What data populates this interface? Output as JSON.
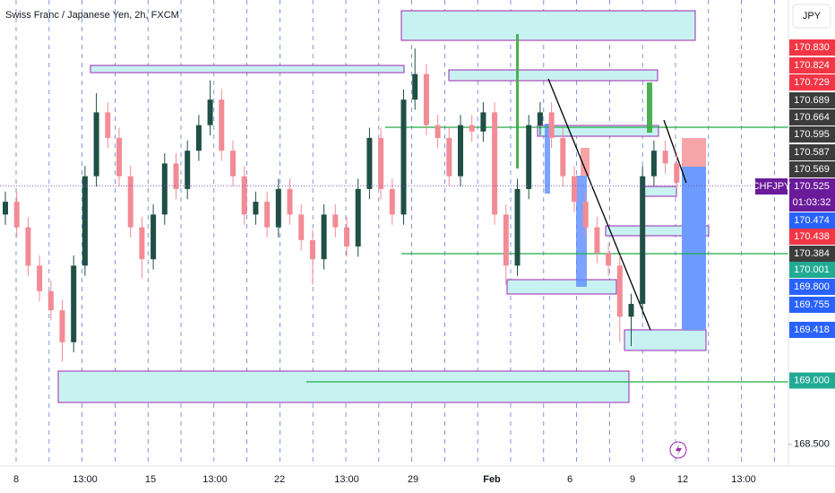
{
  "chart_data": {
    "type": "candlestick",
    "title": "Swiss Franc / Japanese Yen, 2h, FXCM",
    "currency": "JPY",
    "symbol": "CHFJPY",
    "countdown": "01:03:32",
    "up_color": "#1f4f45",
    "down_color": "#f28b95",
    "ylim": [
      168.33,
      171.98
    ],
    "yticks": [
      {
        "value": 168.5,
        "label": "168.500"
      }
    ],
    "current_price": {
      "value": 170.525,
      "label": "170.525"
    },
    "x_tick_labels": [
      "8",
      "13:00",
      "15",
      "13:00",
      "22",
      "13:00",
      "29",
      "Feb",
      "6",
      "9",
      "12",
      "13:00"
    ],
    "price_tags": [
      {
        "value": 170.83,
        "label": "170.830",
        "color": "#f23645"
      },
      {
        "value": 170.824,
        "label": "170.824",
        "color": "#f23645"
      },
      {
        "value": 170.729,
        "label": "170.729",
        "color": "#f23645"
      },
      {
        "value": 170.689,
        "label": "170.689",
        "color": "#3c3c3c"
      },
      {
        "value": 170.664,
        "label": "170.664",
        "color": "#3c3c3c"
      },
      {
        "value": 170.595,
        "label": "170.595",
        "color": "#3c3c3c"
      },
      {
        "value": 170.587,
        "label": "170.587",
        "color": "#3c3c3c"
      },
      {
        "value": 170.569,
        "label": "170.569",
        "color": "#3c3c3c"
      },
      {
        "value": 170.474,
        "label": "170.474",
        "color": "#2962ff"
      },
      {
        "value": 170.438,
        "label": "170.438",
        "color": "#f23645"
      },
      {
        "value": 170.384,
        "label": "170.384",
        "color": "#3c3c3c"
      },
      {
        "value": 170.001,
        "label": "170.001",
        "color": "#22ab94"
      },
      {
        "value": 169.8,
        "label": "169.800",
        "color": "#2962ff"
      },
      {
        "value": 169.755,
        "label": "169.755",
        "color": "#2962ff"
      },
      {
        "value": 169.418,
        "label": "169.418",
        "color": "#2962ff"
      },
      {
        "value": 169.0,
        "label": "169.000",
        "color": "#22ab94"
      }
    ],
    "open": [
      170.3,
      170.4,
      170.2,
      169.9,
      169.7,
      169.55,
      169.3,
      169.9,
      170.6,
      171.1,
      170.9,
      170.6,
      170.2,
      169.95,
      170.3,
      170.7,
      170.5,
      170.8,
      171.0,
      171.2,
      170.8,
      170.6,
      170.3,
      170.4,
      170.2,
      170.5,
      170.3,
      170.1,
      169.95,
      170.3,
      170.2,
      170.05,
      170.5,
      170.9,
      170.5,
      170.3,
      171.2,
      171.4,
      171.0,
      170.9,
      170.6,
      171.0,
      170.95,
      171.1,
      170.3,
      169.9,
      170.5,
      171.0,
      171.1,
      170.9,
      170.6,
      170.4,
      170.2,
      170.0,
      169.9,
      169.5,
      169.6,
      170.6,
      170.8,
      170.7
    ],
    "high": [
      170.48,
      170.48,
      170.28,
      169.98,
      169.78,
      169.63,
      169.98,
      170.68,
      171.25,
      171.18,
      170.98,
      170.68,
      170.28,
      170.38,
      170.78,
      170.78,
      170.88,
      171.08,
      171.35,
      171.28,
      170.88,
      170.68,
      170.48,
      170.48,
      170.58,
      170.58,
      170.38,
      170.18,
      170.38,
      170.38,
      170.28,
      170.58,
      170.98,
      170.98,
      170.58,
      171.28,
      171.6,
      171.48,
      171.08,
      170.98,
      171.08,
      171.08,
      171.18,
      171.18,
      170.38,
      170.58,
      171.08,
      171.18,
      171.18,
      170.98,
      170.68,
      170.48,
      170.28,
      170.08,
      169.98,
      169.68,
      170.68,
      170.88,
      170.88,
      170.78
    ],
    "low": [
      170.22,
      170.12,
      169.82,
      169.62,
      169.47,
      169.15,
      169.22,
      169.82,
      170.52,
      170.82,
      170.52,
      170.12,
      169.8,
      169.87,
      170.22,
      170.42,
      170.42,
      170.72,
      170.92,
      170.72,
      170.52,
      170.22,
      170.22,
      170.12,
      170.12,
      170.22,
      170.02,
      169.75,
      169.87,
      170.12,
      169.97,
      169.97,
      170.42,
      170.42,
      170.22,
      170.22,
      171.12,
      170.92,
      170.82,
      170.52,
      170.52,
      170.87,
      170.87,
      170.22,
      169.75,
      169.82,
      170.42,
      170.92,
      170.82,
      170.52,
      170.32,
      170.12,
      169.92,
      169.82,
      169.3,
      169.27,
      169.52,
      170.52,
      170.62,
      170.5
    ],
    "close": [
      170.4,
      170.2,
      169.9,
      169.7,
      169.55,
      169.3,
      169.9,
      170.6,
      171.1,
      170.9,
      170.6,
      170.2,
      169.95,
      170.3,
      170.7,
      170.5,
      170.8,
      171.0,
      171.2,
      170.8,
      170.6,
      170.3,
      170.4,
      170.2,
      170.5,
      170.3,
      170.1,
      169.95,
      170.3,
      170.2,
      170.05,
      170.5,
      170.9,
      170.5,
      170.3,
      171.2,
      171.4,
      171.0,
      170.9,
      170.6,
      171.0,
      170.95,
      171.1,
      170.3,
      169.9,
      170.5,
      171.0,
      171.1,
      170.9,
      170.6,
      170.4,
      170.2,
      170.0,
      169.9,
      169.5,
      169.6,
      170.6,
      170.8,
      170.7,
      170.55
    ]
  }
}
